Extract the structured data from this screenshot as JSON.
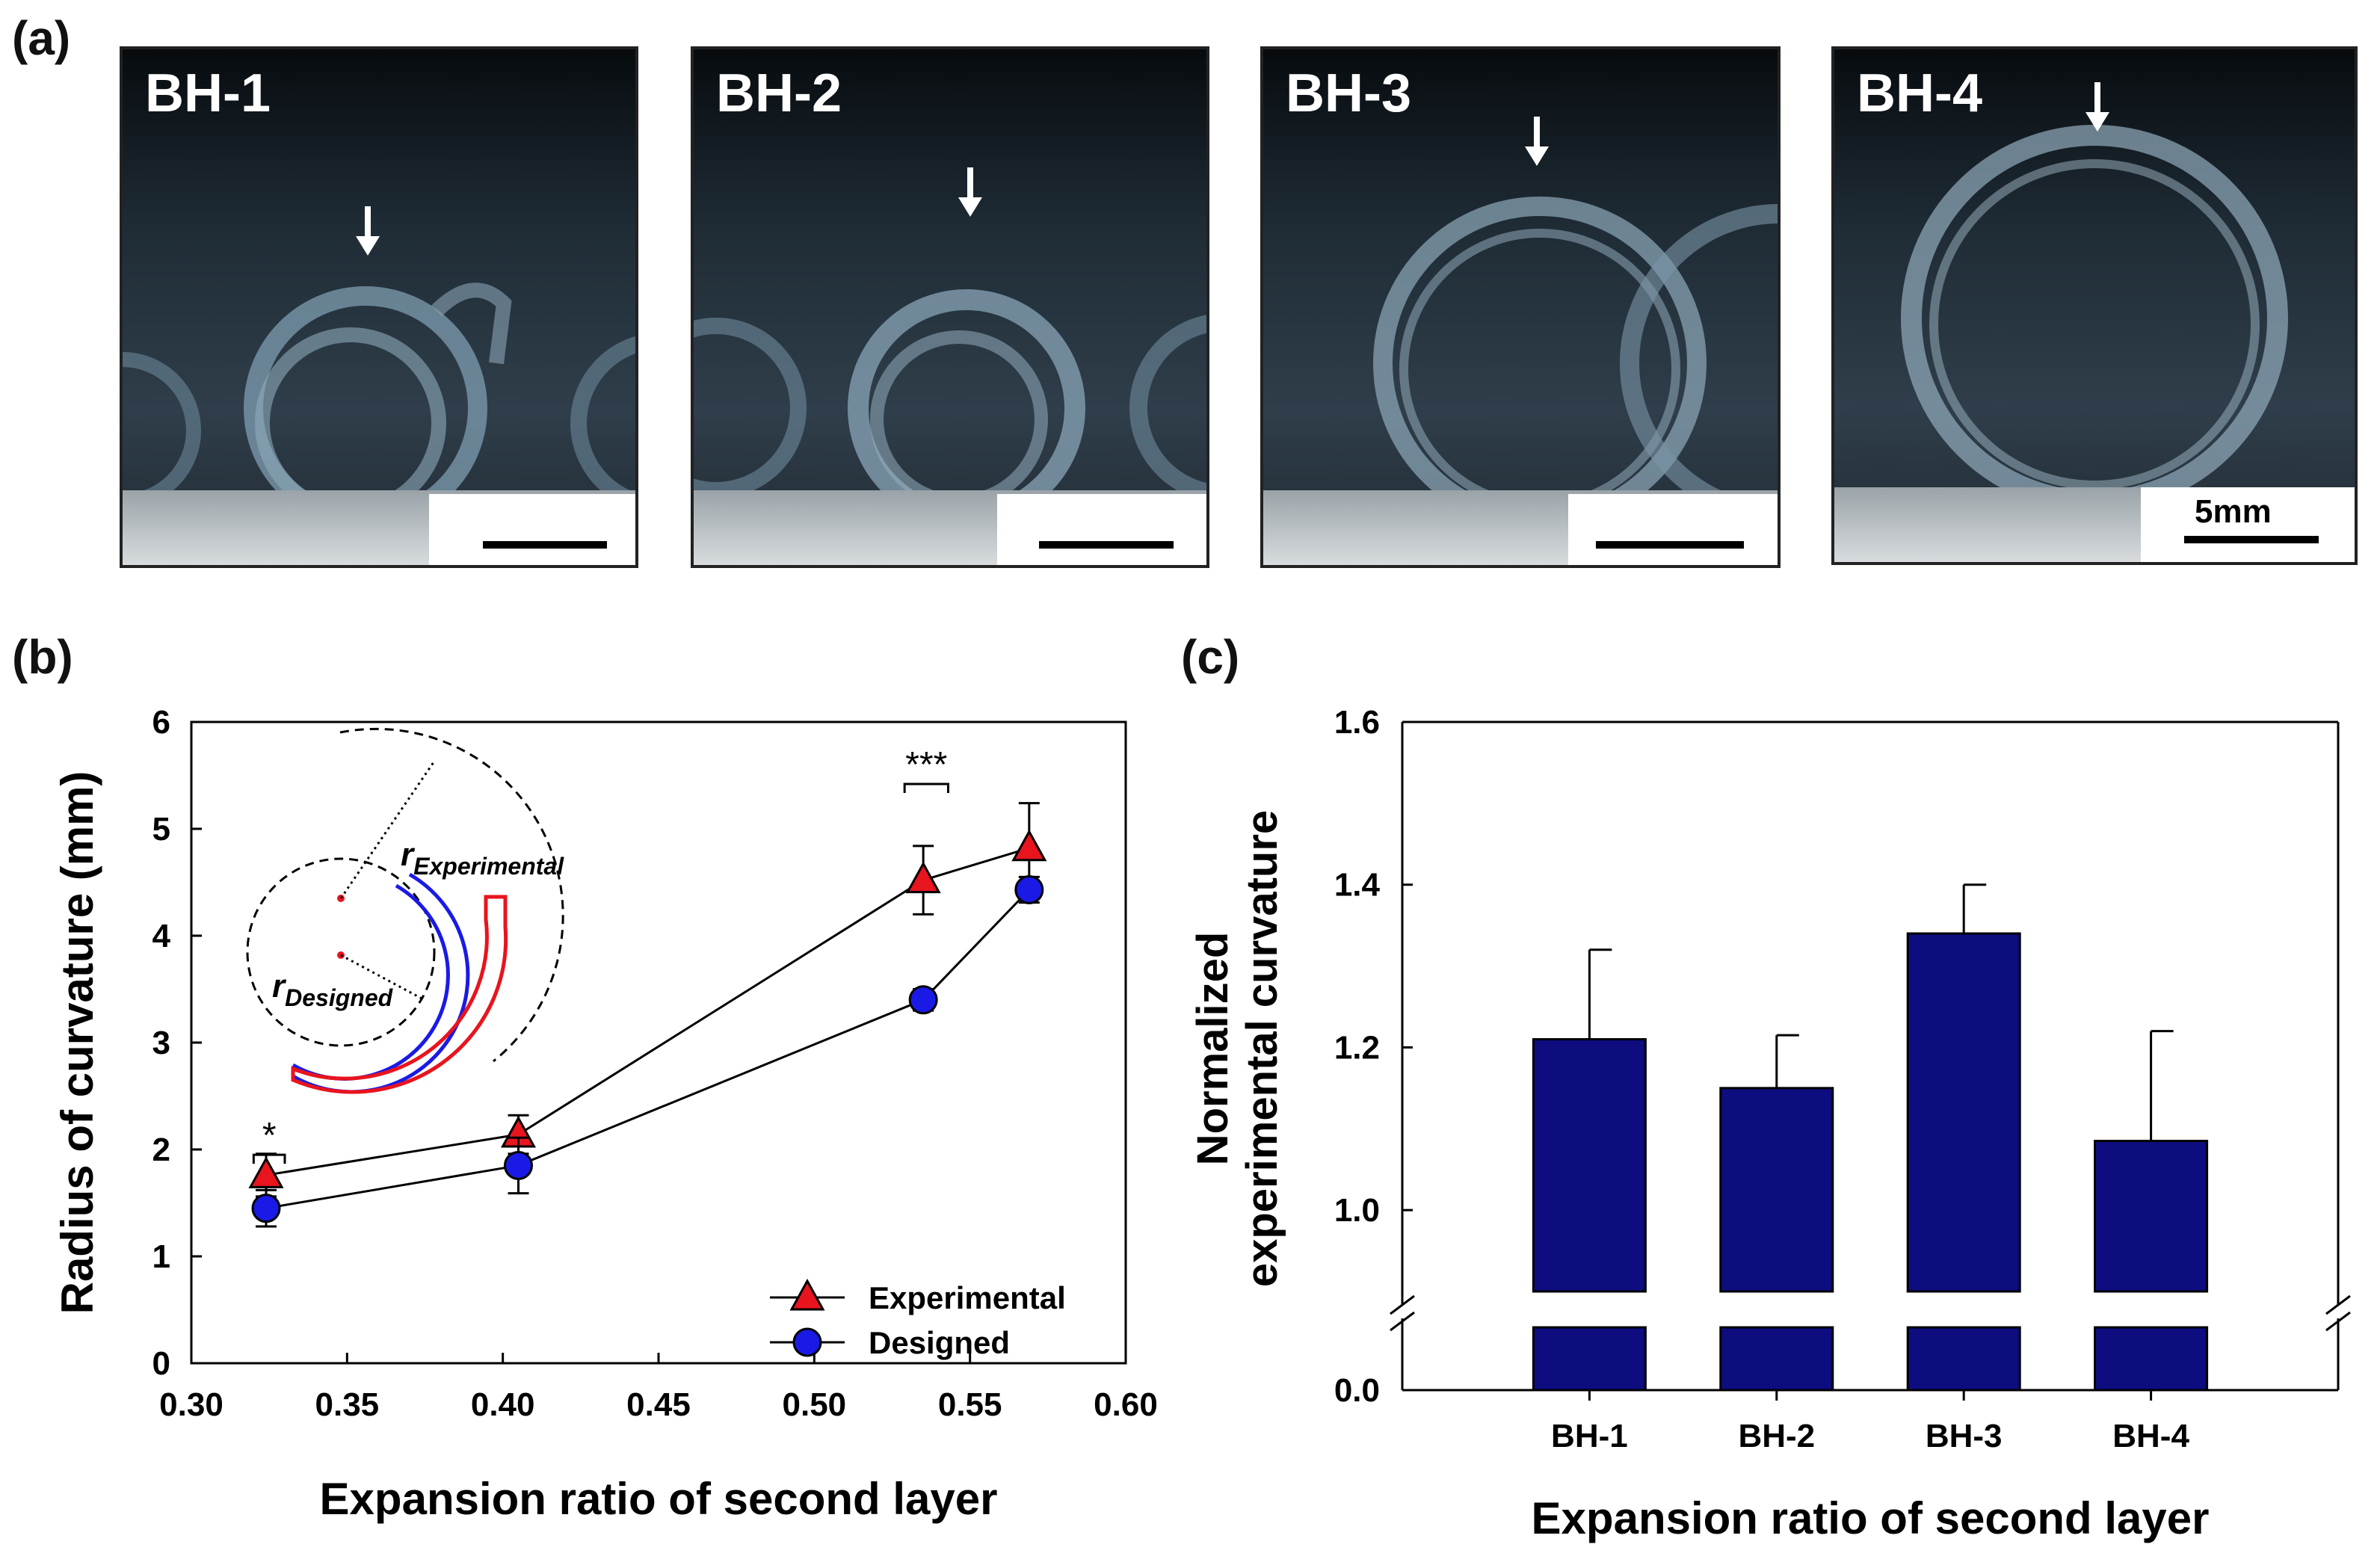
{
  "panel_labels": {
    "a": "(a)",
    "b": "(b)",
    "c": "(c)"
  },
  "photos": [
    {
      "title": "BH-1",
      "scale_label": ""
    },
    {
      "title": "BH-2",
      "scale_label": ""
    },
    {
      "title": "BH-3",
      "scale_label": ""
    },
    {
      "title": "BH-4",
      "scale_label": "5mm"
    }
  ],
  "chart_data": [
    {
      "type": "line",
      "panel": "(b)",
      "xlabel": "Expansion ratio of second layer",
      "ylabel": "Radius of curvature (mm)",
      "xlim": [
        0.3,
        0.6
      ],
      "ylim": [
        0,
        6
      ],
      "xticks": [
        "0.30",
        "0.35",
        "0.40",
        "0.45",
        "0.50",
        "0.55",
        "0.60"
      ],
      "yticks": [
        "0",
        "1",
        "2",
        "3",
        "4",
        "5",
        "6"
      ],
      "series": [
        {
          "name": "Experimental",
          "marker": "triangle",
          "color": "#e8141e",
          "x": [
            0.324,
            0.405,
            0.535,
            0.569
          ],
          "y": [
            1.76,
            2.14,
            4.52,
            4.82
          ],
          "err": [
            0.2,
            0.18,
            0.32,
            0.42
          ]
        },
        {
          "name": "Designed",
          "marker": "circle",
          "color": "#1a1ae6",
          "x": [
            0.324,
            0.405,
            0.535,
            0.569
          ],
          "y": [
            1.45,
            1.85,
            3.4,
            4.43
          ],
          "err": [
            0.17,
            0.26,
            0.1,
            0.12
          ]
        }
      ],
      "significance": [
        {
          "label": "*",
          "x_from": 0.32,
          "x_to": 0.33,
          "y": 1.95
        },
        {
          "label": "***",
          "x_from": 0.529,
          "x_to": 0.543,
          "y": 5.42
        }
      ],
      "inset_labels": {
        "experimental_main": "r",
        "experimental_sub": "Experimental",
        "designed_main": "r",
        "designed_sub": "Designed"
      },
      "legend_position": "bottom-right"
    },
    {
      "type": "bar",
      "panel": "(c)",
      "xlabel": "Expansion ratio of  second layer",
      "ylabel_line1": "Normalized",
      "ylabel_line2": "experimental curvature",
      "categories": [
        "BH-1",
        "BH-2",
        "BH-3",
        "BH-4"
      ],
      "values": [
        1.21,
        1.15,
        1.34,
        1.085
      ],
      "errors": [
        0.11,
        0.065,
        0.06,
        0.135
      ],
      "yticks": [
        "0.0",
        "1.0",
        "1.2",
        "1.4",
        "1.6"
      ],
      "ylim_upper": [
        0.9,
        1.6
      ],
      "ylim_lower": [
        0.0,
        0.1
      ],
      "axis_break": true,
      "bar_color": "#0d0d80"
    }
  ]
}
